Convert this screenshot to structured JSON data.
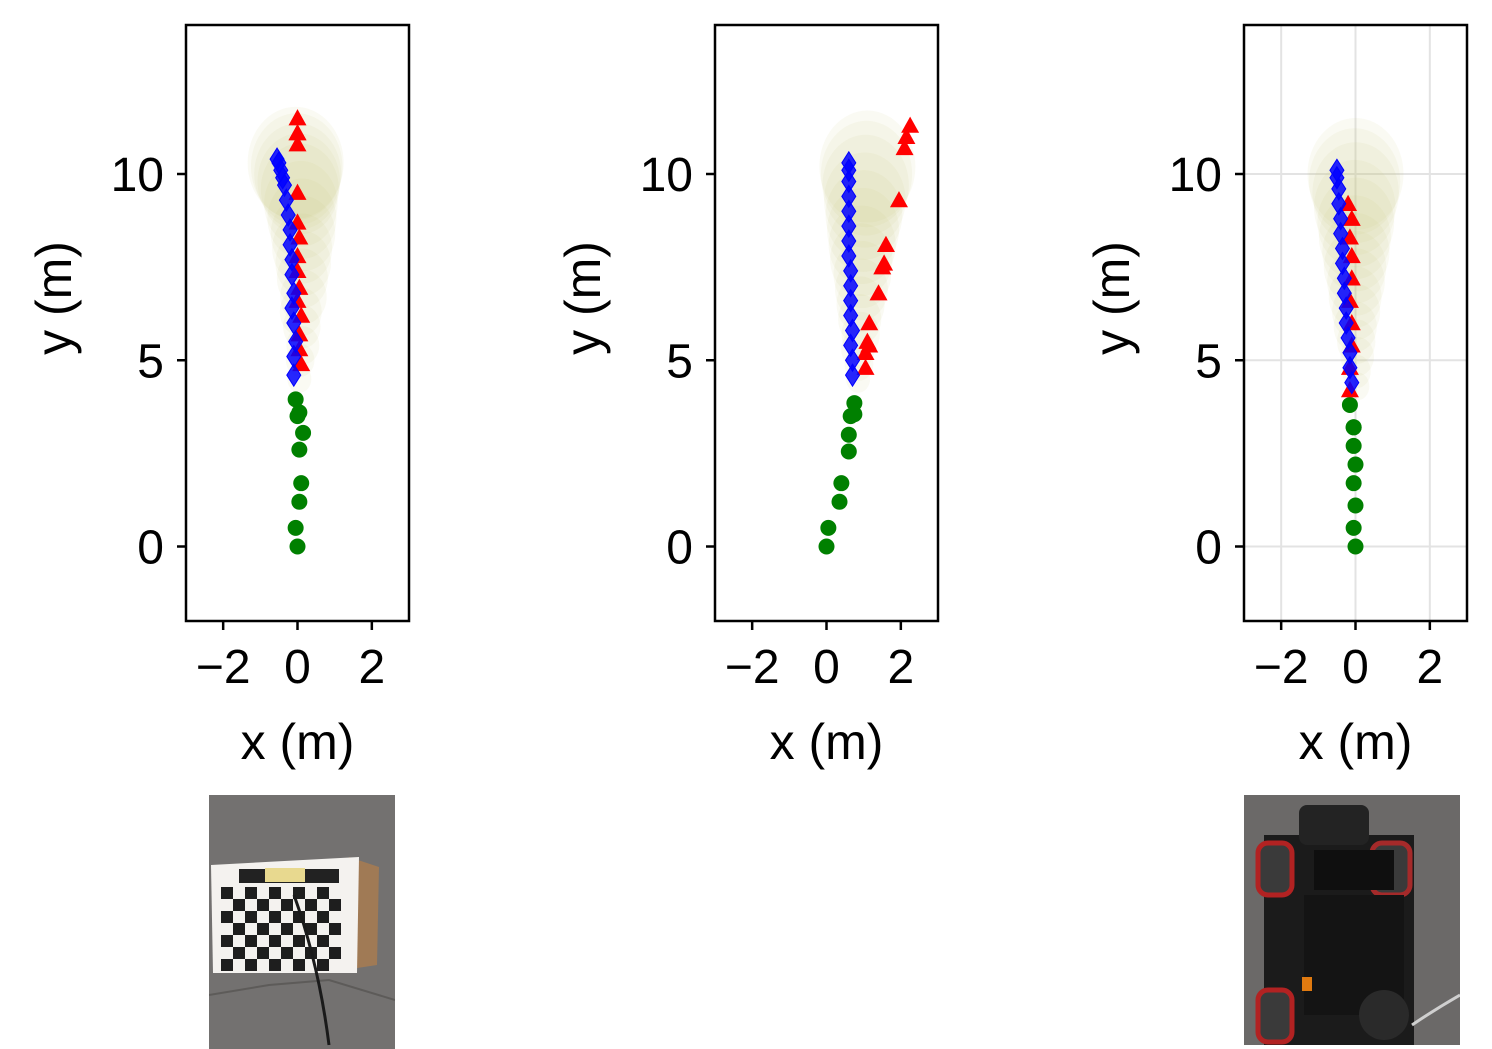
{
  "chart_data": [
    {
      "type": "scatter",
      "xlabel": "x (m)",
      "ylabel": "y (m)",
      "xlim": [
        -3,
        3
      ],
      "ylim": [
        -2,
        14
      ],
      "xticks": [
        -2,
        0,
        2
      ],
      "yticks": [
        0,
        5,
        10
      ],
      "grid": false,
      "series": [
        {
          "marker": "circle",
          "color": "#008000",
          "x": [
            0.0,
            -0.05,
            0.05,
            0.1,
            0.05,
            0.15,
            0.0,
            0.05,
            -0.05
          ],
          "y": [
            0.0,
            0.5,
            1.2,
            1.7,
            2.6,
            3.05,
            3.5,
            3.6,
            3.95
          ]
        },
        {
          "marker": "triangle",
          "color": "#ff0000",
          "x": [
            0.1,
            0.05,
            0.05,
            0.1,
            0.0,
            0.05,
            0.0,
            0.0,
            0.05,
            0.0,
            0.0,
            0.0,
            0.0,
            0.0,
            0.0
          ],
          "y": [
            4.9,
            5.3,
            5.7,
            6.2,
            6.6,
            6.95,
            7.4,
            7.8,
            8.3,
            8.7,
            9.5,
            10.8,
            11.1,
            11.5,
            11.1
          ]
        },
        {
          "marker": "diamond",
          "color": "#0000ff",
          "x": [
            -0.1,
            -0.1,
            -0.05,
            -0.1,
            -0.15,
            -0.1,
            -0.15,
            -0.15,
            -0.2,
            -0.2,
            -0.25,
            -0.3,
            -0.35,
            -0.4,
            -0.45,
            -0.5,
            -0.55
          ],
          "y": [
            4.6,
            5.1,
            5.5,
            6.0,
            6.4,
            6.8,
            7.3,
            7.7,
            8.1,
            8.5,
            8.9,
            9.3,
            9.7,
            9.9,
            10.1,
            10.3,
            10.4
          ]
        }
      ],
      "uncertainty_color": "#c8c878"
    },
    {
      "type": "scatter",
      "xlabel": "x (m)",
      "ylabel": "y (m)",
      "xlim": [
        -3,
        3
      ],
      "ylim": [
        -2,
        14
      ],
      "xticks": [
        -2,
        0,
        2
      ],
      "yticks": [
        0,
        5,
        10
      ],
      "grid": false,
      "series": [
        {
          "marker": "circle",
          "color": "#008000",
          "x": [
            0.0,
            0.05,
            0.35,
            0.4,
            0.6,
            0.6,
            0.65,
            0.75,
            0.75
          ],
          "y": [
            0.0,
            0.5,
            1.2,
            1.7,
            2.55,
            3.0,
            3.5,
            3.55,
            3.85
          ]
        },
        {
          "marker": "triangle",
          "color": "#ff0000",
          "x": [
            1.05,
            1.05,
            1.1,
            1.15,
            1.15,
            1.4,
            1.5,
            1.55,
            1.6,
            1.95,
            2.1,
            2.15,
            2.25
          ],
          "y": [
            4.8,
            5.2,
            5.5,
            5.4,
            6.0,
            6.8,
            7.5,
            7.6,
            8.1,
            9.3,
            10.7,
            11.0,
            11.3
          ]
        },
        {
          "marker": "diamond",
          "color": "#0000ff",
          "x": [
            0.7,
            0.7,
            0.65,
            0.7,
            0.65,
            0.65,
            0.65,
            0.65,
            0.6,
            0.6,
            0.6,
            0.6,
            0.6,
            0.6,
            0.6,
            0.6
          ],
          "y": [
            4.6,
            5.0,
            5.4,
            5.8,
            6.2,
            6.6,
            7.0,
            7.4,
            7.8,
            8.2,
            8.6,
            9.0,
            9.4,
            9.8,
            10.1,
            10.3
          ]
        }
      ],
      "uncertainty_color": "#c8c878"
    },
    {
      "type": "scatter",
      "xlabel": "x (m)",
      "ylabel": "y (m)",
      "xlim": [
        -3,
        3
      ],
      "ylim": [
        -2,
        14
      ],
      "xticks": [
        -2,
        0,
        2
      ],
      "yticks": [
        0,
        5,
        10
      ],
      "grid": true,
      "series": [
        {
          "marker": "circle",
          "color": "#008000",
          "x": [
            0.0,
            -0.05,
            0.0,
            -0.05,
            0.0,
            -0.05,
            -0.05,
            -0.05,
            -0.15
          ],
          "y": [
            0.0,
            0.5,
            1.1,
            1.7,
            2.2,
            2.7,
            3.2,
            3.2,
            3.8
          ]
        },
        {
          "marker": "triangle",
          "color": "#ff0000",
          "x": [
            -0.15,
            -0.15,
            -0.1,
            -0.1,
            -0.15,
            -0.1,
            -0.1,
            -0.15,
            -0.1,
            -0.2
          ],
          "y": [
            4.2,
            4.8,
            5.4,
            6.0,
            6.6,
            7.2,
            7.8,
            8.3,
            8.8,
            9.2
          ]
        },
        {
          "marker": "diamond",
          "color": "#0000ff",
          "x": [
            -0.1,
            -0.15,
            -0.15,
            -0.2,
            -0.25,
            -0.25,
            -0.3,
            -0.3,
            -0.35,
            -0.35,
            -0.4,
            -0.4,
            -0.45,
            -0.45,
            -0.5,
            -0.5
          ],
          "y": [
            4.4,
            4.8,
            5.2,
            5.6,
            6.0,
            6.4,
            6.8,
            7.2,
            7.6,
            8.0,
            8.4,
            8.8,
            9.2,
            9.6,
            9.9,
            10.1
          ]
        }
      ],
      "uncertainty_color": "#c8c878"
    }
  ]
}
